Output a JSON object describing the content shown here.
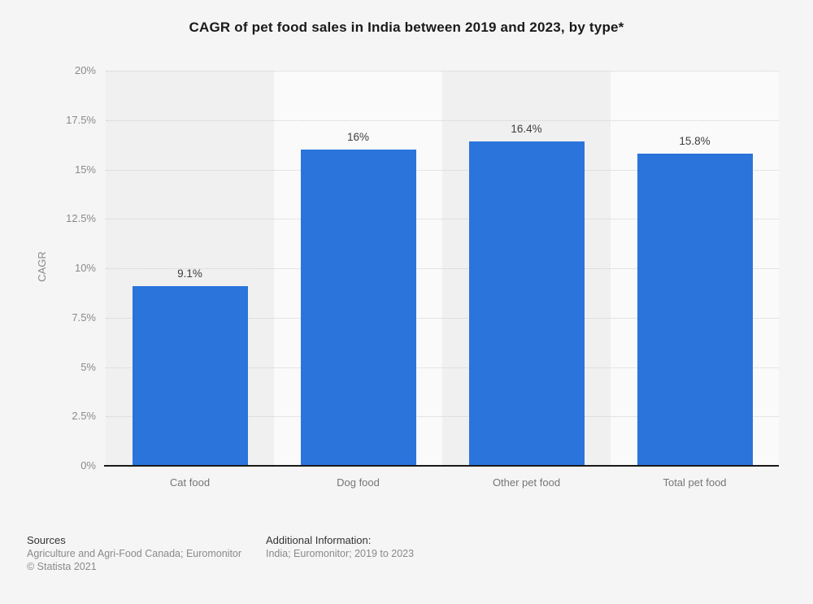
{
  "chart_data": {
    "type": "bar",
    "title": "CAGR of pet food sales in India between 2019 and 2023, by type*",
    "categories": [
      "Cat food",
      "Dog food",
      "Other pet food",
      "Total pet food"
    ],
    "values": [
      9.1,
      16,
      16.4,
      15.8
    ],
    "value_labels": [
      "9.1%",
      "16%",
      "16.4%",
      "15.8%"
    ],
    "xlabel": "",
    "ylabel": "CAGR",
    "ylim": [
      0,
      20
    ],
    "yticks": [
      {
        "value": 0,
        "label": "0%"
      },
      {
        "value": 2.5,
        "label": "2.5%"
      },
      {
        "value": 5,
        "label": "5%"
      },
      {
        "value": 7.5,
        "label": "7.5%"
      },
      {
        "value": 10,
        "label": "10%"
      },
      {
        "value": 12.5,
        "label": "12.5%"
      },
      {
        "value": 15,
        "label": "15%"
      },
      {
        "value": 17.5,
        "label": "17.5%"
      },
      {
        "value": 20,
        "label": "20%"
      }
    ],
    "grid": "horizontal-dotted",
    "legend": "none",
    "bar_color": "#2a74dc"
  },
  "footer": {
    "sources_heading": "Sources",
    "sources_line": "Agriculture and Agri-Food Canada; Euromonitor",
    "copyright": "© Statista 2021",
    "additional_heading": "Additional Information:",
    "additional_line": "India; Euromonitor; 2019 to 2023"
  },
  "colors": {
    "accent_bar": "#2a74dc",
    "background": "#f5f5f5",
    "band_dark": "#f0f0f0",
    "band_light": "#fafafa",
    "gridline": "#cfcfcf",
    "axis_line": "#1a1a1a",
    "title_text": "#1a1a1a",
    "tick_text": "#8a8a8a",
    "value_label_text": "#3f3f3f"
  }
}
